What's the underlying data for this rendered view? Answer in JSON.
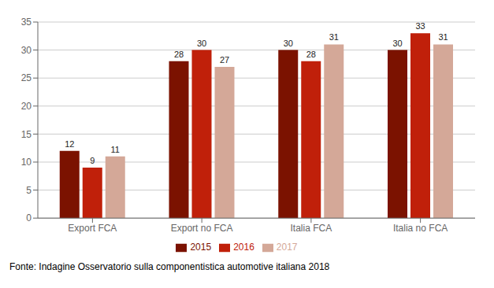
{
  "chart_data": {
    "type": "bar",
    "categories": [
      "Export FCA",
      "Export no FCA",
      "Italia FCA",
      "Italia no FCA"
    ],
    "series": [
      {
        "name": "2015",
        "color": "#7B1200",
        "values": [
          12,
          28,
          30,
          30
        ]
      },
      {
        "name": "2016",
        "color": "#C0200A",
        "values": [
          9,
          30,
          28,
          33
        ]
      },
      {
        "name": "2017",
        "color": "#D4A898",
        "values": [
          11,
          27,
          31,
          31
        ]
      }
    ],
    "ylim": [
      0,
      35
    ],
    "yticks": [
      0,
      5,
      10,
      15,
      20,
      25,
      30,
      35
    ],
    "grid": true,
    "legend": "bottom",
    "data_labels": true,
    "annotations": [
      "Fonte: Indagine Osservatorio sulla componentistica automotive italiana 2018"
    ]
  }
}
